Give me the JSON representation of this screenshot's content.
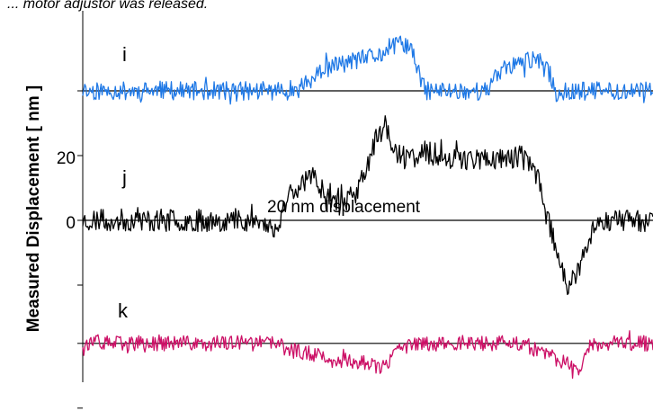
{
  "header_fragment": "... motor adjustor was released.",
  "chart_data": {
    "type": "line",
    "title": "",
    "xlabel": "",
    "ylabel": "Measured Displacement [ nm ]",
    "y_ticks": [
      {
        "value": 20,
        "label": "20"
      },
      {
        "value": 0,
        "label": "0"
      }
    ],
    "ylim": [
      -58,
      58
    ],
    "xlim": [
      0,
      1
    ],
    "grid": false,
    "annotations": [
      {
        "text": "20 nm displacement",
        "near_series": "j"
      }
    ],
    "series": [
      {
        "name": "i",
        "color": "#1e78e6",
        "offset": 40,
        "noise": 1.8,
        "seed": 11,
        "x": [
          0,
          0.355,
          0.36,
          0.4,
          0.42,
          0.445,
          0.52,
          0.56,
          0.575,
          0.6,
          0.69,
          0.71,
          0.735,
          0.795,
          0.82,
          0.83,
          0.855,
          1.0
        ],
        "y": [
          0,
          0,
          0,
          3.0,
          6.0,
          8.0,
          11.0,
          15.0,
          13.0,
          0,
          0,
          0,
          7.0,
          10.0,
          5.0,
          -1.0,
          0,
          0
        ]
      },
      {
        "name": "j",
        "color": "#000000",
        "offset": 0,
        "noise": 2.2,
        "seed": 23,
        "x": [
          0,
          0.3,
          0.34,
          0.36,
          0.4,
          0.42,
          0.45,
          0.48,
          0.515,
          0.53,
          0.55,
          0.57,
          0.6,
          0.66,
          0.74,
          0.77,
          0.8,
          0.815,
          0.83,
          0.85,
          0.87,
          0.9,
          1.0
        ],
        "y": [
          0,
          0,
          -3.0,
          8.0,
          14.0,
          10.0,
          5.0,
          8.0,
          25.0,
          30.0,
          20.0,
          19.0,
          21.0,
          19.0,
          19.0,
          20.0,
          13.0,
          0,
          -8.0,
          -20.0,
          -16.0,
          0,
          0
        ]
      },
      {
        "name": "k",
        "color": "#cc1066",
        "offset": -38,
        "noise": 1.5,
        "seed": 37,
        "x": [
          0,
          0.34,
          0.36,
          0.4,
          0.44,
          0.5,
          0.525,
          0.56,
          0.6,
          0.67,
          0.73,
          0.77,
          0.82,
          0.845,
          0.87,
          0.89,
          1.0
        ],
        "y": [
          0,
          0,
          -2.0,
          -3.0,
          -5.0,
          -6.0,
          -8.0,
          -1.0,
          0,
          0,
          0,
          0,
          -4.0,
          -6.0,
          -8.0,
          0,
          0
        ]
      }
    ]
  }
}
